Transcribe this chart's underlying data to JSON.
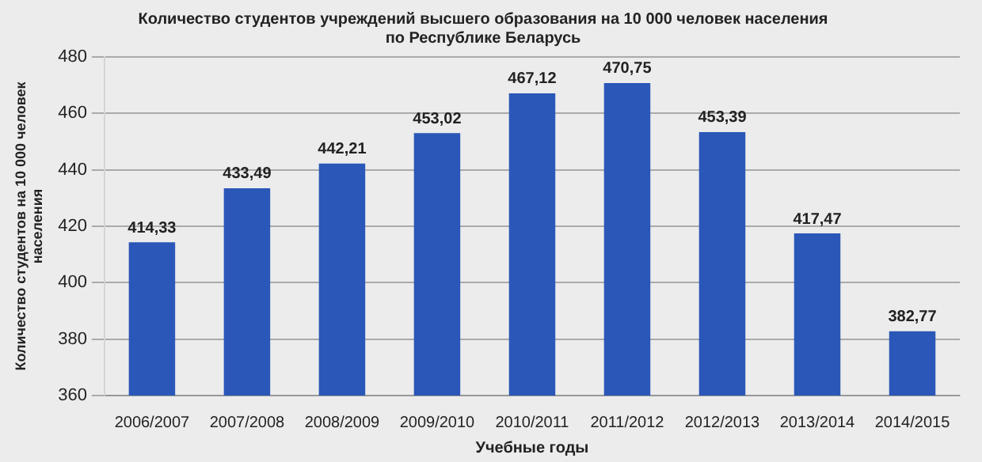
{
  "chart_data": {
    "type": "bar",
    "title": "Количество студентов учреждений высшего образования на 10 000 человек населения\nпо Республике Беларусь",
    "xlabel": "Учебные годы",
    "ylabel": "Количество студентов на 10 000 человек\nнаселения",
    "categories": [
      "2006/2007",
      "2007/2008",
      "2008/2009",
      "2009/2010",
      "2010/2011",
      "2011/2012",
      "2012/2013",
      "2013/2014",
      "2014/2015"
    ],
    "values": [
      414.33,
      433.49,
      442.21,
      453.02,
      467.12,
      470.75,
      453.39,
      417.47,
      382.77
    ],
    "value_labels": [
      "414,33",
      "433,49",
      "442,21",
      "453,02",
      "467,12",
      "470,75",
      "453,39",
      "417,47",
      "382,77"
    ],
    "color": "#2a57b8",
    "ylim": [
      360,
      480
    ],
    "yticks": [
      360,
      380,
      400,
      420,
      440,
      460,
      480
    ],
    "grid": "y",
    "legend": false
  }
}
